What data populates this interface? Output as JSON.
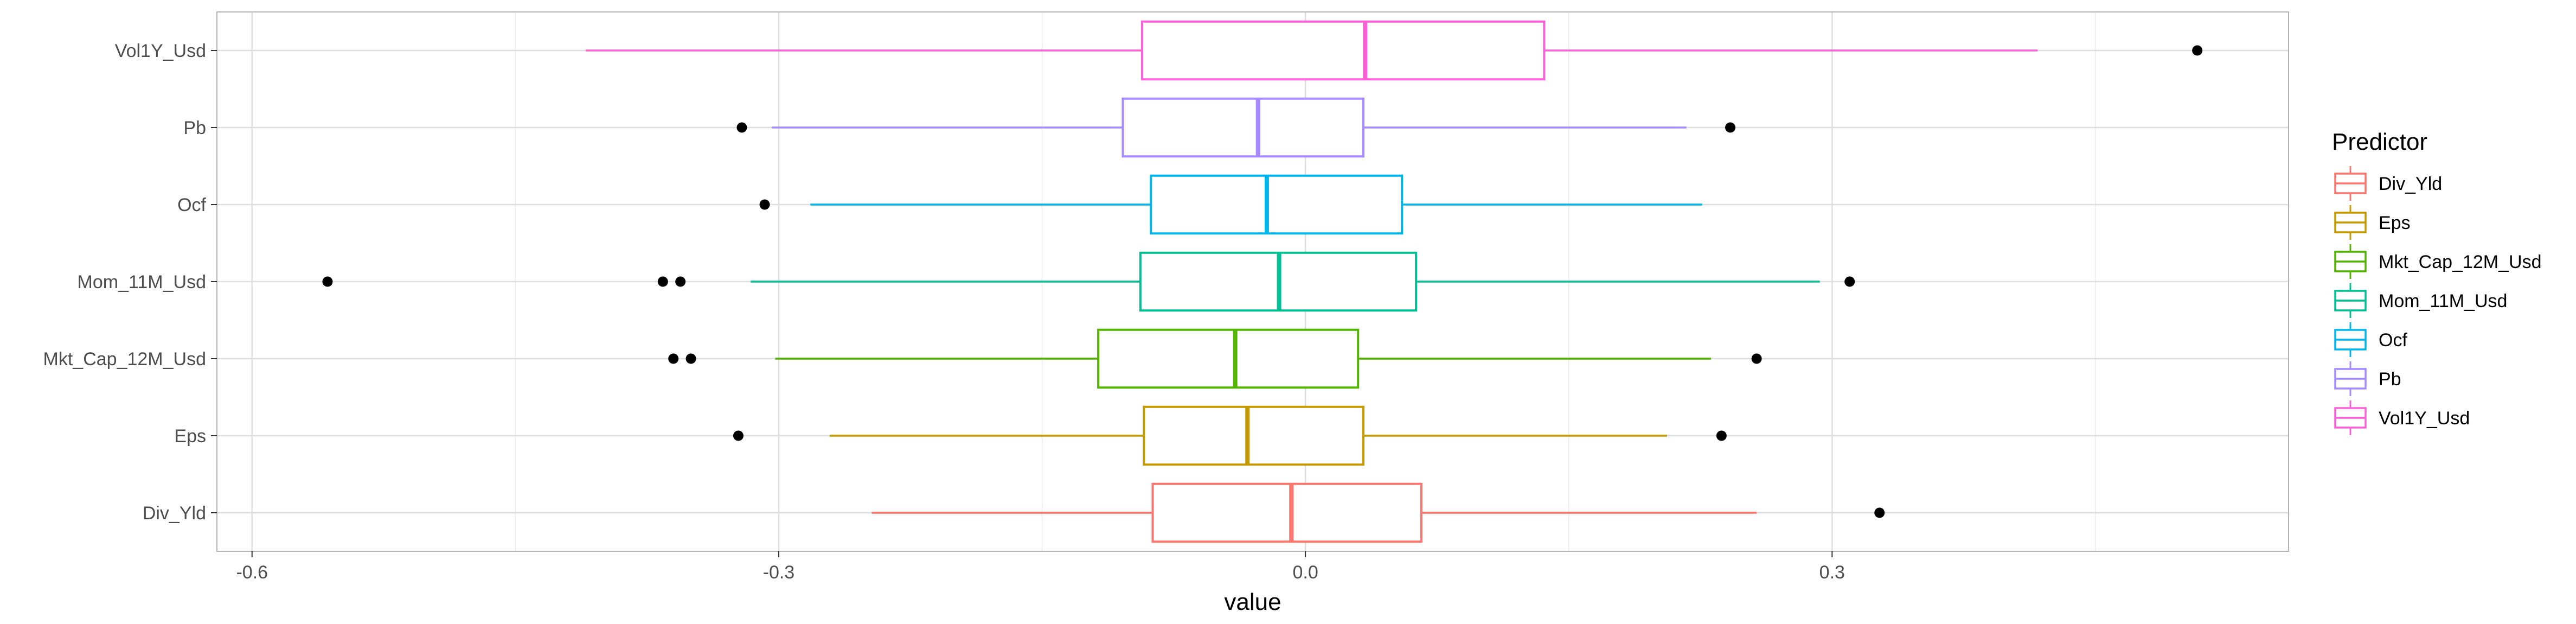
{
  "chart_data": {
    "type": "boxplot",
    "orientation": "horizontal",
    "title": "",
    "xlabel": "value",
    "ylabel": "",
    "xlim": [
      -0.62,
      0.56
    ],
    "xticks": [
      -0.6,
      -0.3,
      0.0,
      0.3
    ],
    "xtick_labels": [
      "-0.6",
      "-0.3",
      "0.0",
      "0.3"
    ],
    "grid": true,
    "legend_title": "Predictor",
    "legend_position": "right",
    "series": [
      {
        "name": "Div_Yld",
        "color": "#F8766D",
        "whisker_low": -0.247,
        "q1": -0.087,
        "median": -0.008,
        "q3": 0.066,
        "whisker_high": 0.257,
        "outliers": [
          0.327
        ]
      },
      {
        "name": "Eps",
        "color": "#C49A00",
        "whisker_low": -0.271,
        "q1": -0.092,
        "median": -0.033,
        "q3": 0.033,
        "whisker_high": 0.206,
        "outliers": [
          -0.323,
          0.237
        ]
      },
      {
        "name": "Mkt_Cap_12M_Usd",
        "color": "#53B400",
        "whisker_low": -0.302,
        "q1": -0.118,
        "median": -0.04,
        "q3": 0.03,
        "whisker_high": 0.231,
        "outliers": [
          -0.36,
          -0.35,
          0.257
        ]
      },
      {
        "name": "Mom_11M_Usd",
        "color": "#00C094",
        "whisker_low": -0.316,
        "q1": -0.094,
        "median": -0.015,
        "q3": 0.063,
        "whisker_high": 0.293,
        "outliers": [
          -0.557,
          -0.366,
          -0.356,
          0.31
        ]
      },
      {
        "name": "Ocf",
        "color": "#00B6EB",
        "whisker_low": -0.282,
        "q1": -0.088,
        "median": -0.022,
        "q3": 0.055,
        "whisker_high": 0.226,
        "outliers": [
          -0.308
        ]
      },
      {
        "name": "Pb",
        "color": "#A58AFF",
        "whisker_low": -0.304,
        "q1": -0.104,
        "median": -0.027,
        "q3": 0.033,
        "whisker_high": 0.217,
        "outliers": [
          -0.321,
          0.242
        ]
      },
      {
        "name": "Vol1Y_Usd",
        "color": "#FB61D7",
        "whisker_low": -0.41,
        "q1": -0.093,
        "median": 0.034,
        "q3": 0.136,
        "whisker_high": 0.417,
        "outliers": [
          0.508
        ]
      }
    ]
  }
}
